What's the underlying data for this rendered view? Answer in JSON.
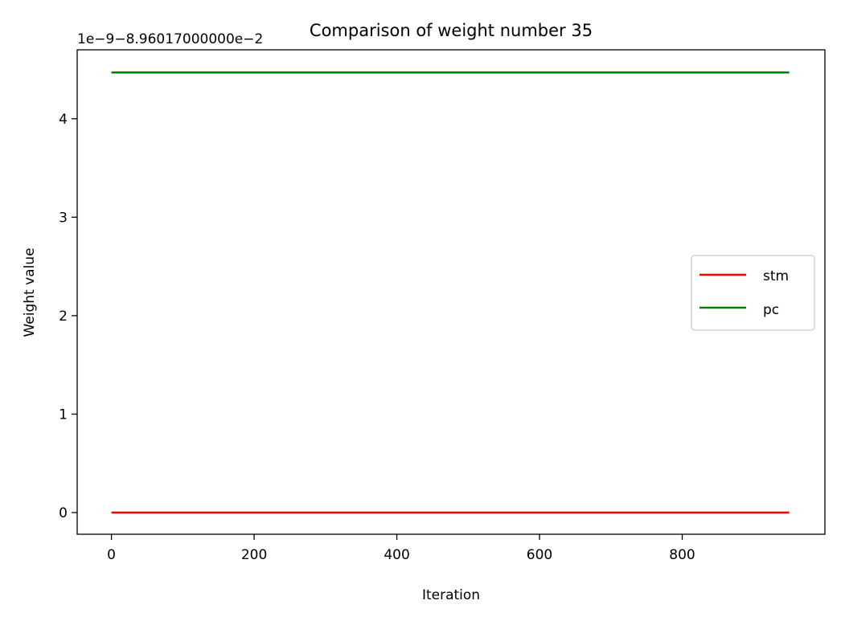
{
  "chart_data": {
    "type": "line",
    "title": "Comparison of weight number 35",
    "xlabel": "Iteration",
    "ylabel": "Weight value",
    "offset_text": "1e−9−8.96017000000e−2",
    "xlim": [
      -48,
      1000
    ],
    "ylim": [
      -0.22,
      4.7
    ],
    "xticks": [
      0,
      200,
      400,
      600,
      800
    ],
    "yticks": [
      0,
      1,
      2,
      3,
      4
    ],
    "grid": false,
    "legend_position": "center-right",
    "series": [
      {
        "name": "stm",
        "color": "#ff0000",
        "x": [
          0,
          950
        ],
        "y": [
          0.0,
          0.0
        ]
      },
      {
        "name": "pc",
        "color": "#008000",
        "x": [
          0,
          950
        ],
        "y": [
          4.47,
          4.47
        ]
      }
    ]
  }
}
